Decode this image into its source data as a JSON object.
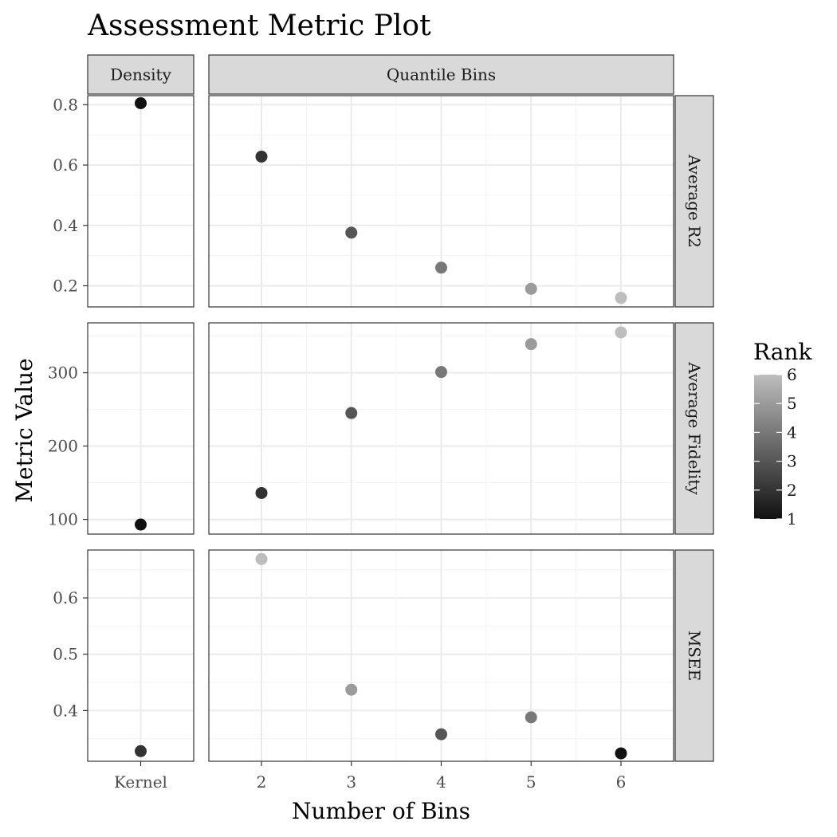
{
  "chart_data": {
    "type": "scatter",
    "title": "Assessment Metric Plot",
    "xlabel": "Number of Bins",
    "ylabel": "Metric Value",
    "facet_columns": [
      {
        "label": "Density",
        "x_ticks": [
          "Kernel"
        ]
      },
      {
        "label": "Quantile Bins",
        "x_ticks": [
          "2",
          "3",
          "4",
          "5",
          "6"
        ]
      }
    ],
    "facet_rows": [
      {
        "label": "Average R2",
        "ylim": [
          0.13,
          0.83
        ],
        "y_ticks": [
          0.2,
          0.4,
          0.6,
          0.8
        ],
        "y_tick_labels": [
          "0.2",
          "0.4",
          "0.6",
          "0.8"
        ],
        "points": [
          {
            "col": 0,
            "x": "Kernel",
            "y": 0.805,
            "rank": 1
          },
          {
            "col": 1,
            "x": 2,
            "y": 0.628,
            "rank": 2
          },
          {
            "col": 1,
            "x": 3,
            "y": 0.376,
            "rank": 3
          },
          {
            "col": 1,
            "x": 4,
            "y": 0.26,
            "rank": 4
          },
          {
            "col": 1,
            "x": 5,
            "y": 0.19,
            "rank": 5
          },
          {
            "col": 1,
            "x": 6,
            "y": 0.16,
            "rank": 6
          }
        ]
      },
      {
        "label": "Average Fidelity",
        "ylim": [
          80,
          368
        ],
        "y_ticks": [
          100,
          200,
          300
        ],
        "y_tick_labels": [
          "100",
          "200",
          "300"
        ],
        "points": [
          {
            "col": 0,
            "x": "Kernel",
            "y": 93,
            "rank": 1
          },
          {
            "col": 1,
            "x": 2,
            "y": 136,
            "rank": 2
          },
          {
            "col": 1,
            "x": 3,
            "y": 245,
            "rank": 3
          },
          {
            "col": 1,
            "x": 4,
            "y": 301,
            "rank": 4
          },
          {
            "col": 1,
            "x": 5,
            "y": 339,
            "rank": 5
          },
          {
            "col": 1,
            "x": 6,
            "y": 355,
            "rank": 6
          }
        ]
      },
      {
        "label": "MSEE",
        "ylim": [
          0.31,
          0.685
        ],
        "y_ticks": [
          0.4,
          0.5,
          0.6
        ],
        "y_tick_labels": [
          "0.4",
          "0.5",
          "0.6"
        ],
        "points": [
          {
            "col": 0,
            "x": "Kernel",
            "y": 0.328,
            "rank": 2
          },
          {
            "col": 1,
            "x": 2,
            "y": 0.669,
            "rank": 6
          },
          {
            "col": 1,
            "x": 3,
            "y": 0.437,
            "rank": 5
          },
          {
            "col": 1,
            "x": 4,
            "y": 0.358,
            "rank": 3
          },
          {
            "col": 1,
            "x": 5,
            "y": 0.388,
            "rank": 4
          },
          {
            "col": 1,
            "x": 6,
            "y": 0.324,
            "rank": 1
          }
        ]
      }
    ],
    "legend": {
      "title": "Rank",
      "placement": "right",
      "range": [
        1,
        6
      ],
      "ticks": [
        "1",
        "2",
        "3",
        "4",
        "5",
        "6"
      ],
      "low_color": "#111111",
      "high_color": "#bdbdbd"
    },
    "grid": true,
    "colors": {
      "panel_border": "#333333",
      "strip_fill": "#d9d9d9",
      "grid_major": "#ebebeb"
    }
  }
}
